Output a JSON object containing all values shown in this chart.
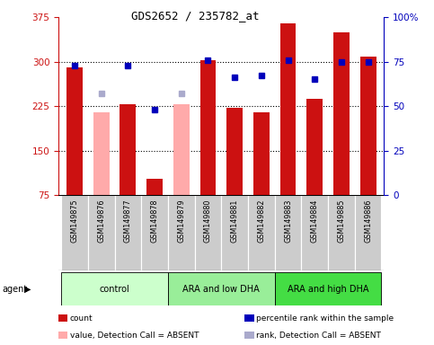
{
  "title": "GDS2652 / 235782_at",
  "samples": [
    "GSM149875",
    "GSM149876",
    "GSM149877",
    "GSM149878",
    "GSM149879",
    "GSM149880",
    "GSM149881",
    "GSM149882",
    "GSM149883",
    "GSM149884",
    "GSM149885",
    "GSM149886"
  ],
  "count_values": [
    290,
    215,
    228,
    103,
    228,
    302,
    222,
    215,
    365,
    238,
    350,
    308
  ],
  "count_absent": [
    false,
    true,
    false,
    false,
    true,
    false,
    false,
    false,
    false,
    false,
    false,
    false
  ],
  "percentile_values": [
    73,
    null,
    73,
    48,
    null,
    76,
    66,
    67,
    76,
    65,
    75,
    75
  ],
  "absent_rank_values": [
    null,
    57,
    null,
    null,
    57,
    null,
    null,
    null,
    null,
    null,
    null,
    null
  ],
  "ylim_left": [
    75,
    375
  ],
  "ylim_right": [
    0,
    100
  ],
  "yticks_left": [
    75,
    150,
    225,
    300,
    375
  ],
  "yticks_right": [
    0,
    25,
    50,
    75,
    100
  ],
  "groups": [
    {
      "label": "control",
      "start": 0,
      "end": 4,
      "color": "#ccffcc"
    },
    {
      "label": "ARA and low DHA",
      "start": 4,
      "end": 8,
      "color": "#99ee99"
    },
    {
      "label": "ARA and high DHA",
      "start": 8,
      "end": 12,
      "color": "#44dd44"
    }
  ],
  "bar_color_present": "#cc1111",
  "bar_color_absent": "#ffaaaa",
  "dot_color_present": "#0000bb",
  "dot_color_absent": "#aaaacc",
  "grid_color": "#000000",
  "plot_bg": "#ffffff",
  "label_bg": "#cccccc"
}
